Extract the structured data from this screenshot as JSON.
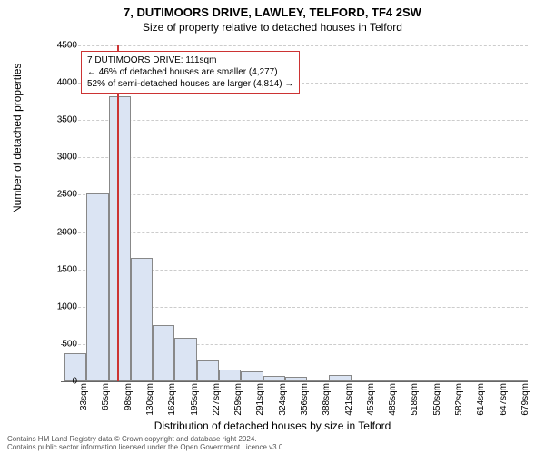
{
  "title_main": "7, DUTIMOORS DRIVE, LAWLEY, TELFORD, TF4 2SW",
  "title_sub": "Size of property relative to detached houses in Telford",
  "ylabel": "Number of detached properties",
  "xlabel": "Distribution of detached houses by size in Telford",
  "chart": {
    "type": "histogram",
    "ylim": [
      0,
      4500
    ],
    "ytick_step": 500,
    "yticks": [
      0,
      500,
      1000,
      1500,
      2000,
      2500,
      3000,
      3500,
      4000,
      4500
    ],
    "categories": [
      "33sqm",
      "65sqm",
      "98sqm",
      "130sqm",
      "162sqm",
      "195sqm",
      "227sqm",
      "259sqm",
      "291sqm",
      "324sqm",
      "356sqm",
      "388sqm",
      "421sqm",
      "453sqm",
      "485sqm",
      "518sqm",
      "550sqm",
      "582sqm",
      "614sqm",
      "647sqm",
      "679sqm"
    ],
    "values": [
      380,
      2520,
      3820,
      1650,
      750,
      580,
      280,
      160,
      130,
      70,
      60,
      30,
      80,
      15,
      10,
      10,
      8,
      5,
      5,
      5,
      5
    ],
    "bar_fill": "#dbe4f3",
    "bar_border": "#888888",
    "grid_color": "#cccccc",
    "background": "#ffffff",
    "marker_index": 2.4,
    "marker_color": "#cc3333"
  },
  "annotation": {
    "line1": "7 DUTIMOORS DRIVE: 111sqm",
    "line2": "← 46% of detached houses are smaller (4,277)",
    "line3": "52% of semi-detached houses are larger (4,814) →",
    "border_color": "#cc3333"
  },
  "footer": {
    "line1": "Contains HM Land Registry data © Crown copyright and database right 2024.",
    "line2": "Contains public sector information licensed under the Open Government Licence v3.0."
  }
}
